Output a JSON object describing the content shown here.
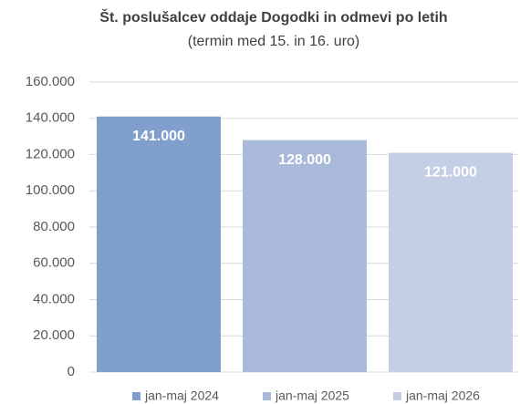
{
  "chart_data": {
    "type": "bar",
    "title": "Št. poslušalcev oddaje Dogodki in odmevi po letih",
    "subtitle": "(termin med 15. in 16. uro)",
    "categories": [
      null
    ],
    "series": [
      {
        "name": "jan-maj 2024",
        "color": "#819fcd",
        "values": [
          141000
        ],
        "value_labels": [
          "141.000"
        ]
      },
      {
        "name": "jan-maj 2025",
        "color": "#a9b9da",
        "values": [
          128000
        ],
        "value_labels": [
          "128.000"
        ]
      },
      {
        "name": "jan-maj 2026",
        "color": "#c4cee4",
        "values": [
          121000
        ],
        "value_labels": [
          "121.000"
        ]
      }
    ],
    "ylim": [
      0,
      160000
    ],
    "yticks": [
      0,
      {
        "value": 20000,
        "label": "20.000"
      },
      {
        "value": 40000,
        "label": "40.000"
      },
      {
        "value": 60000,
        "label": "60.000"
      },
      {
        "value": 80000,
        "label": "80.000"
      },
      {
        "value": 100000,
        "label": "100.000"
      },
      {
        "value": 120000,
        "label": "120.000"
      },
      {
        "value": 140000,
        "label": "140.000"
      },
      {
        "value": 160000,
        "label": "160.000"
      }
    ],
    "grid": true,
    "legend": "bottom"
  }
}
